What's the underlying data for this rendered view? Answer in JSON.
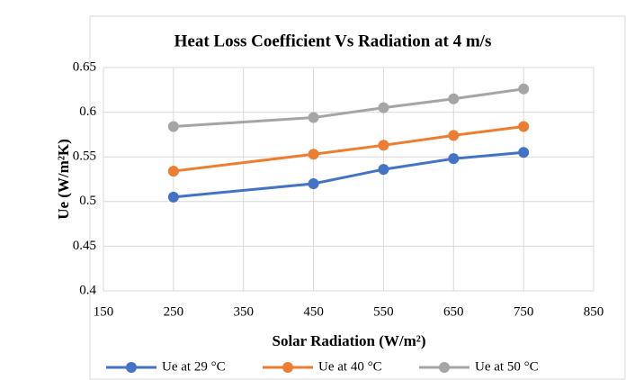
{
  "chart_data": {
    "type": "line",
    "title": "Heat Loss Coefficient Vs Radiation at 4 m/s",
    "x_label": "Solar Radiation (W/m²)",
    "y_label": "Ue (W/m²K)",
    "x": [
      250,
      450,
      550,
      650,
      750
    ],
    "series": [
      {
        "name": "Ue at 29 °C",
        "color": "#4472c4",
        "values": [
          0.505,
          0.52,
          0.536,
          0.548,
          0.555
        ]
      },
      {
        "name": "Ue at 40 °C",
        "color": "#ed7d31",
        "values": [
          0.534,
          0.553,
          0.563,
          0.574,
          0.584
        ]
      },
      {
        "name": "Ue at 50 °C",
        "color": "#a5a5a5",
        "values": [
          0.584,
          0.594,
          0.605,
          0.615,
          0.626
        ]
      }
    ],
    "xlim": [
      150,
      850
    ],
    "xticks": [
      150,
      250,
      350,
      450,
      550,
      650,
      750,
      850
    ],
    "ylim": [
      0.4,
      0.65
    ],
    "yticks": [
      0.4,
      0.45,
      0.5,
      0.55,
      0.6,
      0.65
    ],
    "grid": true,
    "legend": "bottom"
  }
}
